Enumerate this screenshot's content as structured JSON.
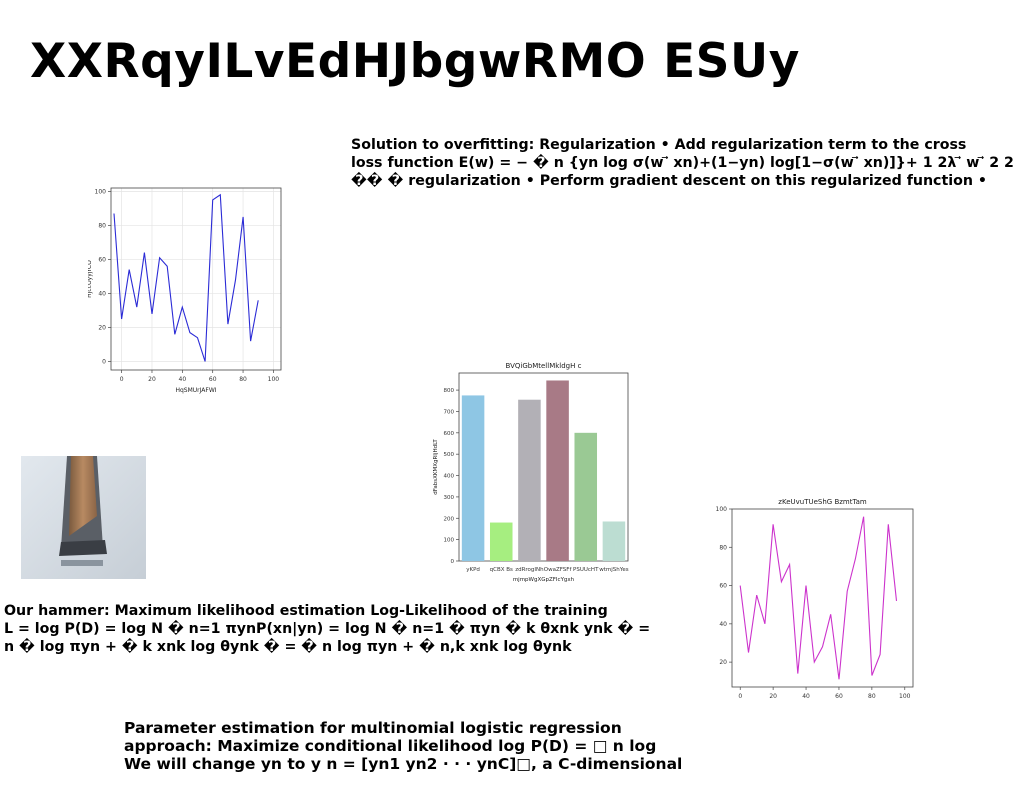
{
  "title": "XXRqyILvEdHJbgwRMO ESUy",
  "block1": {
    "lines": [
      "Solution to overfitting: Regularization • Add regularization term to the cross",
      "loss function E(w) = − � n {yn log σ(w ⃗ xn)+(1−yn) log[1−σ(w ⃗ xn)]}+ 1 2λ ⃗ w ⃗ 2 2",
      "�� � regularization • Perform gradient descent on this regularized function •"
    ]
  },
  "block2": {
    "lines": [
      "Our hammer: Maximum likelihood estimation Log-Likelihood of the training",
      "L = log P(D) = log N � n=1 πynP(xn|yn) = log N � n=1 � πyn � k θxnk ynk � =",
      "n � log πyn + � k xnk log θynk � = � n log πyn + � n,k xnk log θynk"
    ]
  },
  "block3": {
    "lines": [
      "Parameter estimation for multinomial logistic regression",
      "approach: Maximize conditional likelihood log P(D) = □ n log",
      "We will change yn to y n = [yn1 yn2 · · · ynC]□, a C-dimensional"
    ]
  },
  "chart_data": [
    {
      "type": "line",
      "title": "",
      "xlabel": "HqSMUrJAFWI",
      "ylabel": "HjccOyyjrCO",
      "xlim": [
        -7,
        105
      ],
      "ylim": [
        -5,
        102
      ],
      "xticks": [
        0,
        20,
        40,
        60,
        80,
        100
      ],
      "yticks": [
        0,
        20,
        40,
        60,
        80,
        100
      ],
      "color": "#2b2bd6",
      "grid": true,
      "x": [
        -5,
        0,
        5,
        10,
        15,
        20,
        25,
        30,
        35,
        40,
        45,
        50,
        55,
        60,
        65,
        70,
        75,
        80,
        85,
        90,
        95,
        100
      ],
      "y": [
        87,
        25,
        54,
        32,
        64,
        28,
        61,
        56,
        16,
        32,
        17,
        14,
        0,
        95,
        98,
        22,
        48,
        85,
        12,
        36,
        null,
        null
      ]
    },
    {
      "type": "bar",
      "title": "BVQiGbMtellMkldgH c",
      "xlabel": "mjmpWgXGpZFIcYgxh",
      "ylabel": "dFabsXKMXgRIjHdLT",
      "ylim": [
        0,
        880
      ],
      "yticks": [
        0,
        100,
        200,
        300,
        400,
        500,
        600,
        700,
        800
      ],
      "categories": [
        "yKPd",
        "qCBX Bs",
        "zdRrogINh",
        "OwaZFSFf",
        "PSUUcHT",
        "wtmjShYes"
      ],
      "values": [
        775,
        180,
        755,
        845,
        600,
        185
      ],
      "colors": [
        "#8ec6e4",
        "#a6ee80",
        "#b2b0b6",
        "#a87a86",
        "#9ac994",
        "#bcddd2"
      ]
    },
    {
      "type": "line",
      "title": "zKeUvuTUeShG BzmtTam",
      "xlabel": "",
      "ylabel": "",
      "xlim": [
        -5,
        105
      ],
      "ylim": [
        7,
        100
      ],
      "xticks": [
        0,
        20,
        40,
        60,
        80,
        100
      ],
      "yticks": [
        20,
        40,
        60,
        80,
        100
      ],
      "color": "#cc33cc",
      "grid": false,
      "x": [
        0,
        5,
        10,
        15,
        20,
        25,
        30,
        35,
        40,
        45,
        50,
        55,
        60,
        65,
        70,
        75,
        80,
        85,
        90,
        95,
        100
      ],
      "y": [
        60,
        25,
        55,
        40,
        92,
        62,
        71,
        14,
        60,
        20,
        28,
        45,
        11,
        57,
        74,
        96,
        13,
        24,
        92,
        52,
        null
      ]
    }
  ]
}
